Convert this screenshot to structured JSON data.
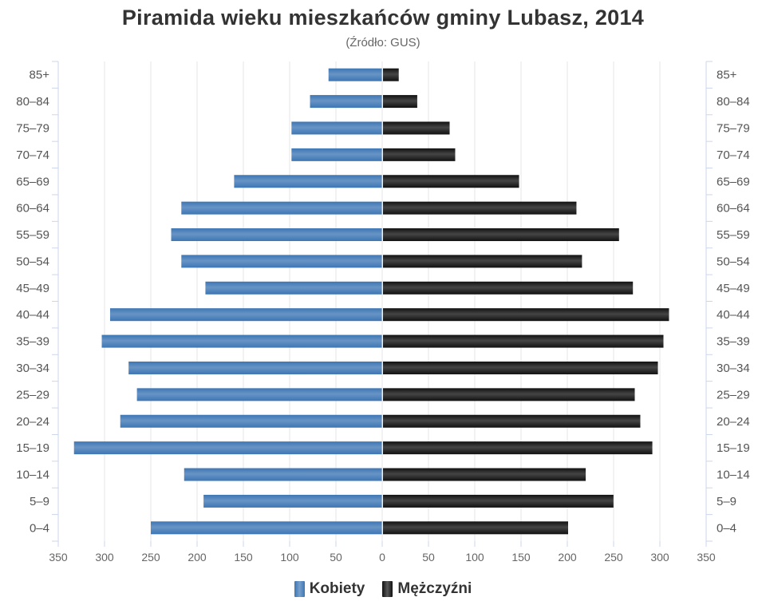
{
  "chart_data": {
    "type": "bar",
    "orientation": "horizontal",
    "layout": "population-pyramid",
    "title": "Piramida wieku mieszkańców gminy Lubasz, 2014",
    "subtitle": "(Źródło: GUS)",
    "categories": [
      "85+",
      "80–84",
      "75–79",
      "70–74",
      "65–69",
      "60–64",
      "55–59",
      "50–54",
      "45–49",
      "40–44",
      "35–39",
      "30–34",
      "25–29",
      "20–24",
      "15–19",
      "10–14",
      "5–9",
      "0–4"
    ],
    "series": [
      {
        "name": "Kobiety",
        "color": "#3d76b4",
        "values": [
          58,
          78,
          98,
          98,
          160,
          217,
          228,
          217,
          191,
          294,
          303,
          274,
          265,
          283,
          333,
          214,
          193,
          250
        ]
      },
      {
        "name": "Mężczyźni",
        "color": "#111111",
        "values": [
          17,
          37,
          72,
          78,
          147,
          209,
          255,
          215,
          270,
          309,
          303,
          297,
          272,
          278,
          291,
          219,
          249,
          200
        ]
      }
    ],
    "xlim": [
      -350,
      350
    ],
    "x_ticks": [
      -350,
      -300,
      -250,
      -200,
      -150,
      -100,
      -50,
      0,
      50,
      100,
      150,
      200,
      250,
      300,
      350
    ],
    "x_tick_labels": [
      "350",
      "300",
      "250",
      "200",
      "150",
      "100",
      "50",
      "0",
      "50",
      "100",
      "150",
      "200",
      "250",
      "300",
      "350"
    ],
    "grid": true,
    "legend": "bottom-center"
  }
}
